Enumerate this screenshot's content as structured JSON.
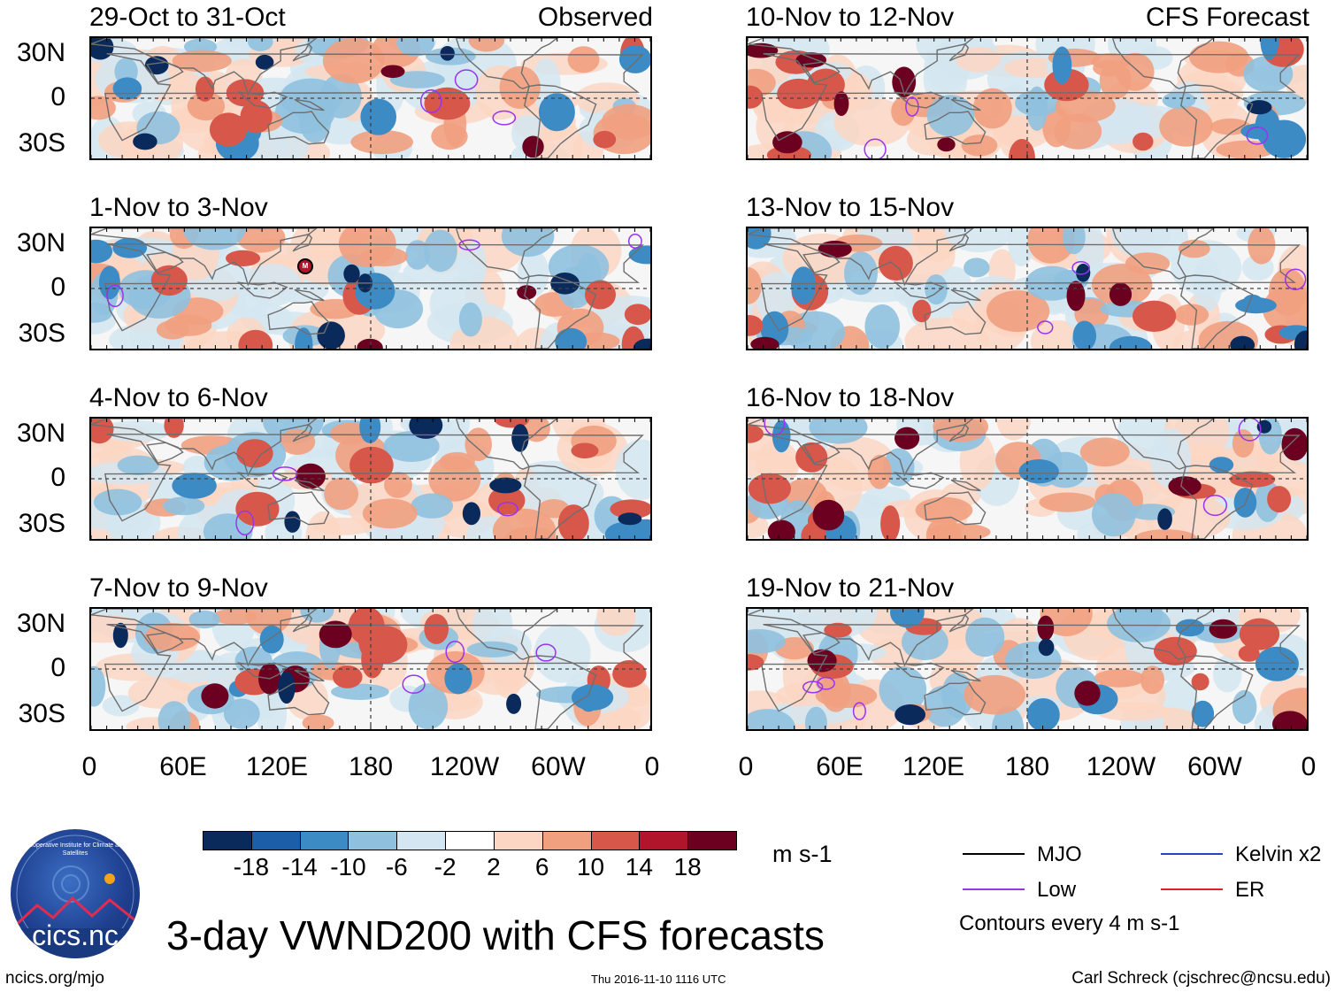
{
  "figure_title": "3-day VWND200 with CFS forecasts",
  "observed_label": "Observed",
  "forecast_label": "CFS Forecast",
  "left_panels": [
    {
      "title": "29-Oct to 31-Oct"
    },
    {
      "title": "1-Nov to 3-Nov"
    },
    {
      "title": "4-Nov to 6-Nov"
    },
    {
      "title": "7-Nov to 9-Nov"
    }
  ],
  "right_panels": [
    {
      "title": "10-Nov to 12-Nov"
    },
    {
      "title": "13-Nov to 15-Nov"
    },
    {
      "title": "16-Nov to 18-Nov"
    },
    {
      "title": "19-Nov to 21-Nov"
    }
  ],
  "lat_labels": [
    "30N",
    "0",
    "30S"
  ],
  "lon_labels": [
    "0",
    "60E",
    "120E",
    "180",
    "120W",
    "60W",
    "0"
  ],
  "colorbar": {
    "colors": [
      "#0a2a5c",
      "#1c5ea8",
      "#3d8bc4",
      "#8fc1df",
      "#d3e6f1",
      "#ffffff",
      "#fcd6c3",
      "#f1a07f",
      "#d7584a",
      "#b1152b",
      "#6b0020"
    ],
    "labels": [
      "-18",
      "-14",
      "-10",
      "-6",
      "-2",
      "2",
      "6",
      "10",
      "14",
      "18"
    ],
    "units": "m s-1"
  },
  "legend": {
    "items": [
      {
        "label": "MJO",
        "color": "#000000"
      },
      {
        "label": "Kelvin x2",
        "color": "#2244cc"
      },
      {
        "label": "Low",
        "color": "#9933ee"
      },
      {
        "label": "ER",
        "color": "#dd2222"
      }
    ],
    "note": "Contours every 4 m s-1"
  },
  "footer": {
    "left": "ncics.org/mjo",
    "center": "Thu 2016-11-10 1116 UTC",
    "right": "Carl Schreck (cjschrec@ncsu.edu)"
  },
  "logo": {
    "text": "cics.nc",
    "ring": "Cooperative Institute for Climate and Satellites"
  },
  "marker_label": "M"
}
